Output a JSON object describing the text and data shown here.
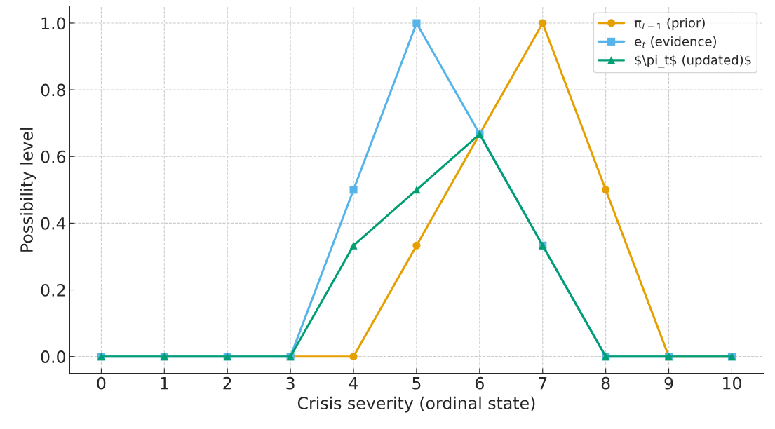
{
  "chart_data": {
    "type": "line",
    "xlabel": "Crisis severity (ordinal state)",
    "ylabel": "Possibility level",
    "x": [
      0,
      1,
      2,
      3,
      4,
      5,
      6,
      7,
      8,
      9,
      10
    ],
    "series": [
      {
        "name": "π$_{t−1}$ (prior)",
        "color": "#e69f00",
        "marker": "circle",
        "values": [
          null,
          null,
          null,
          0,
          0,
          0.333,
          0.667,
          1,
          0.5,
          0,
          0
        ]
      },
      {
        "name": "e$_{t}$ (evidence)",
        "color": "#56b4e9",
        "marker": "square",
        "values": [
          0,
          0,
          0,
          0,
          0.5,
          1,
          0.667,
          0.333,
          0,
          0,
          0
        ]
      },
      {
        "name": "$\\pi_t$ (updated)$",
        "color": "#009e73",
        "marker": "triangle",
        "values": [
          0,
          0,
          0,
          0,
          0.333,
          0.5,
          0.667,
          0.333,
          0,
          0,
          0
        ]
      }
    ],
    "xlim": [
      -0.5,
      10.5
    ],
    "xticks": [
      0,
      1,
      2,
      3,
      4,
      5,
      6,
      7,
      8,
      9,
      10
    ],
    "ylim": [
      -0.05,
      1.05
    ],
    "yticks": [
      {
        "value": 0,
        "label": "0.0"
      },
      0.2,
      0.4,
      0.6,
      0.8,
      {
        "value": 1,
        "label": "1.0"
      }
    ],
    "grid": true,
    "legend": "top right",
    "line_style": "solid"
  }
}
